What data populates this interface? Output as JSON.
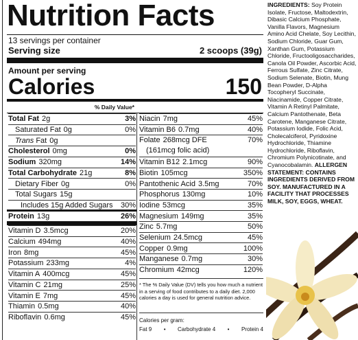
{
  "label": {
    "title": "Nutrition Facts",
    "servings": "13 servings per container",
    "serving_size": {
      "label": "Serving size",
      "value": "2 scoops (39g)"
    },
    "amount_per_serving": "Amount per serving",
    "calories": {
      "label": "Calories",
      "value": "150"
    },
    "dv_header": "% Daily Value*",
    "main_rows": [
      {
        "name": "Total Fat",
        "amount": "2g",
        "dv": "3%"
      },
      {
        "name": "Saturated Fat",
        "amount": "0g",
        "dv": "0%"
      },
      {
        "name_italic": "Trans",
        "name": "Fat",
        "amount": "0g"
      },
      {
        "name": "Cholesterol",
        "amount": "0mg",
        "dv": "0%"
      },
      {
        "name": "Sodium",
        "amount": "320mg",
        "dv": "14%"
      },
      {
        "name": "Total Carbohydrate",
        "amount": "21g",
        "dv": "8%"
      },
      {
        "name": "Dietary Fiber",
        "amount": "0g",
        "dv": "0%"
      },
      {
        "name": "Total Sugars",
        "amount": "15g"
      },
      {
        "name": "Includes 15g Added Sugars",
        "dv": "30%"
      },
      {
        "name": "Protein",
        "amount": "13g",
        "dv": "26%"
      }
    ],
    "left_vitamins": [
      {
        "name": "Vitamin D",
        "amount": "3.5mcg",
        "dv": "20%"
      },
      {
        "name": "Calcium",
        "amount": "494mg",
        "dv": "40%"
      },
      {
        "name": "Iron",
        "amount": "8mg",
        "dv": "45%"
      },
      {
        "name": "Potassium",
        "amount": "233mg",
        "dv": "4%"
      },
      {
        "name": "Vitamin A",
        "amount": "400mcg",
        "dv": "45%"
      },
      {
        "name": "Vitamin C",
        "amount": "21mg",
        "dv": "25%"
      },
      {
        "name": "Vitamin E",
        "amount": "7mg",
        "dv": "45%"
      },
      {
        "name": "Thiamin",
        "amount": "0.5mg",
        "dv": "40%"
      },
      {
        "name": "Riboflavin",
        "amount": "0.6mg",
        "dv": "45%"
      }
    ],
    "right_vitamins": [
      {
        "name": "Niacin",
        "amount": "7mg",
        "dv": "45%"
      },
      {
        "name": "Vitamin B6",
        "amount": "0.7mg",
        "dv": "40%"
      },
      {
        "name": "Folate",
        "amount": "268mcg DFE",
        "note": "(161mcg folic acid)",
        "dv": "70%"
      },
      {
        "name": "Vitamin B12",
        "amount": "2.1mcg",
        "dv": "90%"
      },
      {
        "name": "Biotin",
        "amount": "105mcg",
        "dv": "350%"
      },
      {
        "name": "Pantothenic Acid",
        "amount": "3.5mg",
        "dv": "70%"
      },
      {
        "name": "Phosphorus",
        "amount": "130mg",
        "dv": "10%"
      },
      {
        "name": "Iodine",
        "amount": "53mcg",
        "dv": "35%"
      },
      {
        "name": "Magnesium",
        "amount": "149mg",
        "dv": "35%"
      },
      {
        "name": "Zinc",
        "amount": "5.7mg",
        "dv": "50%"
      },
      {
        "name": "Selenium",
        "amount": "24.5mcg",
        "dv": "45%"
      },
      {
        "name": "Copper",
        "amount": "0.9mg",
        "dv": "100%"
      },
      {
        "name": "Manganese",
        "amount": "0.7mg",
        "dv": "30%"
      },
      {
        "name": "Chromium",
        "amount": "42mcg",
        "dv": "120%"
      }
    ],
    "footnote": "* The % Daily Value (DV) tells you how much a nutrient in a serving of food contributes to a daily diet. 2,000 calories a day is used for general nutrition advice.",
    "calories_per_gram": {
      "label": "Calories per gram:",
      "items": [
        "Fat 9",
        "Carbohydrate 4",
        "Protein 4"
      ],
      "separator": "•"
    }
  },
  "ingredients": {
    "label": "INGREDIENTS:",
    "text": "Soy Protein Isolate, Fructose, Maltodextrin, Dibasic Calcium Phosphate, Vanilla Flavors, Magnesium Amino Acid Chelate, Soy Lecithin, Sodium Chloride, Guar Gum, Xanthan Gum, Potassium Chloride, Fructooligosaccharides, Canola Oil Powder, Ascorbic Acid, Ferrous Sulfate, Zinc Citrate, Sodium Selenate, Biotin, Mung Bean Powder, D-Alpha Tocopheryl Succinate, Niacinamide, Copper Citrate, Vitamin A Retinyl Palmitate, Calcium Pantothenate, Beta Carotene, Manganese Citrate, Potassium Iodide, Folic Acid, Cholecalciferol, Pyridoxine Hydrochloride, Thiamine Hydrochloride, Riboflavin, Chromium Polynicotinate, and Cyanocobalamin.",
    "allergen_label": "ALLERGEN STATEMENT:",
    "allergen_text": "CONTAINS INGREDIENTS DERIVED FROM SOY. MANUFACTURED IN A FACILITY THAT PROCESSES MILK, SOY, EGGS, WHEAT."
  }
}
